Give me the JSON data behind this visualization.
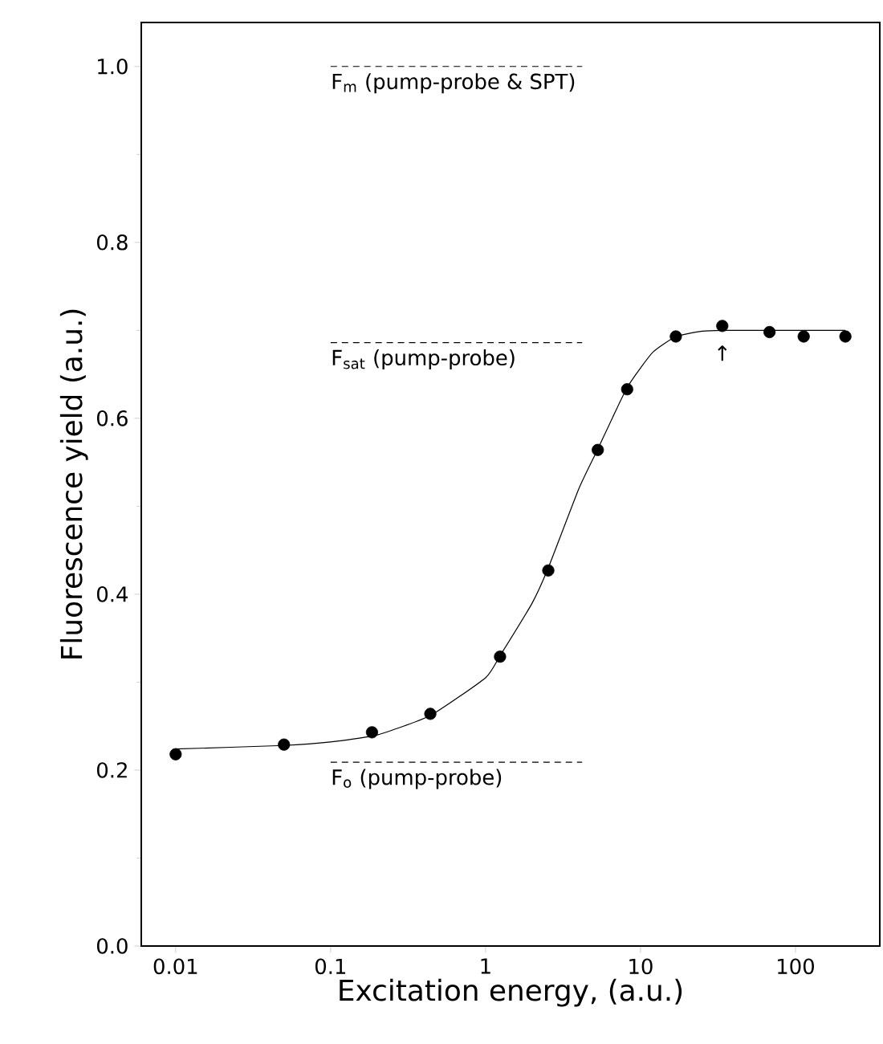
{
  "chart_data": {
    "type": "scatter",
    "xlabel": "Excitation energy, (a.u.)",
    "ylabel": "Fluorescence yield (a.u.)",
    "log": "x",
    "xlim": [
      0.006,
      350
    ],
    "ylim": [
      0,
      1.05
    ],
    "xticks": [
      0.01,
      0.1,
      1,
      10,
      100
    ],
    "yticks": [
      {
        "value": 0,
        "label": "0.0"
      },
      0.2,
      0.4,
      0.6,
      0.8,
      {
        "value": 1.0,
        "label": "1.0"
      }
    ],
    "grid": false,
    "series": [
      {
        "type": "line",
        "color": "#000000",
        "marker": "none",
        "line_style": "solid",
        "x": [
          0.01,
          0.05,
          0.1,
          0.2,
          0.44,
          1,
          1.24,
          2,
          2.54,
          4,
          5.3,
          8.2,
          12,
          17,
          25,
          34,
          70,
          210
        ],
        "values": [
          0.224,
          0.228,
          0.232,
          0.24,
          0.262,
          0.305,
          0.33,
          0.39,
          0.43,
          0.52,
          0.565,
          0.635,
          0.675,
          0.693,
          0.699,
          0.7,
          0.7,
          0.7
        ]
      },
      {
        "color": "#000000",
        "marker": "circle",
        "x": [
          0.01,
          0.05,
          0.185,
          0.44,
          1.24,
          2.54,
          5.3,
          8.2,
          16.9,
          33.7,
          68,
          113,
          210
        ],
        "values": [
          0.218,
          0.229,
          0.243,
          0.264,
          0.329,
          0.427,
          0.564,
          0.633,
          0.693,
          0.705,
          0.698,
          0.693,
          0.693
        ]
      },
      {
        "type": "line",
        "color": "#000000",
        "marker": "none",
        "line_style": "dashed",
        "x": [
          0.1,
          4.2
        ],
        "values": [
          1.0,
          1.0
        ]
      },
      {
        "type": "line",
        "color": "#000000",
        "marker": "none",
        "line_style": "dashed",
        "x": [
          0.1,
          4.2
        ],
        "values": [
          0.686,
          0.686
        ]
      },
      {
        "type": "line",
        "color": "#000000",
        "marker": "none",
        "line_style": "dashed",
        "x": [
          0.1,
          4.2
        ],
        "values": [
          0.209,
          0.209
        ]
      }
    ],
    "annotations": [
      "F$_{m}$ (pump-probe & SPT)",
      "F$_{sat}$ (pump-probe)",
      "F$_{o}$ (pump-probe)",
      "↑"
    ]
  }
}
